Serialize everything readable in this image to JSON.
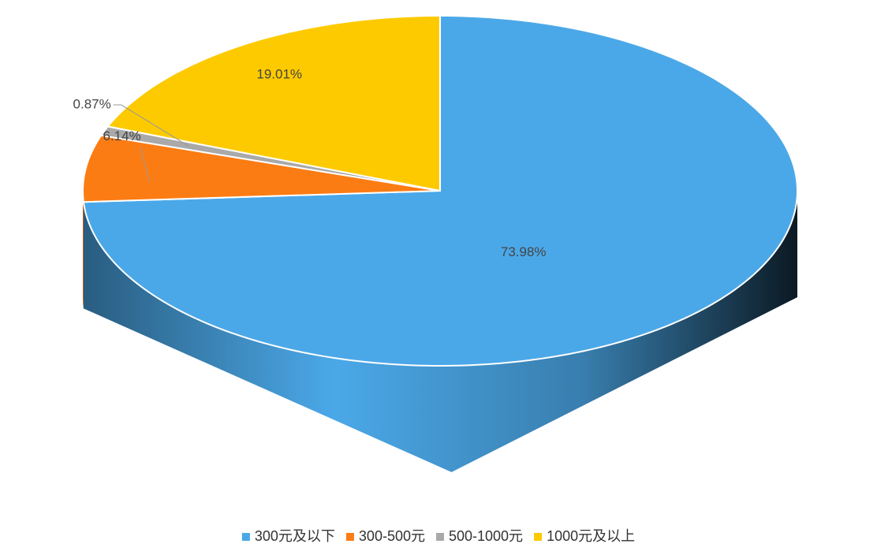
{
  "chart_data": {
    "type": "pie",
    "categories": [
      "300元及以下",
      "300-500元",
      "500-1000元",
      "1000元及以上"
    ],
    "values": [
      73.98,
      6.14,
      0.87,
      19.01
    ],
    "value_labels": [
      "73.98%",
      "6.14%",
      "0.87%",
      "19.01%"
    ],
    "colors": [
      "#4ba8e8",
      "#fc7c14",
      "#a9a9a9",
      "#fdca00"
    ],
    "legend": "bottom"
  }
}
